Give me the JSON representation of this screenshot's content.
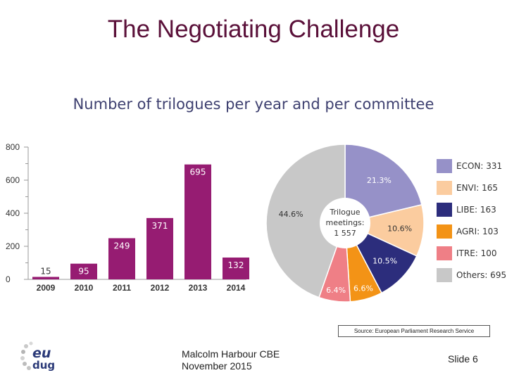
{
  "slide": {
    "title": "The Negotiating Challenge",
    "source": "Source: European Parliament Research Service",
    "presenter_name": "Malcolm Harbour CBE",
    "presenter_date": " November 2015",
    "slide_number": "Slide 6",
    "logo_text_top": "eu",
    "logo_text_bottom": "dug"
  },
  "chart_data": [
    {
      "type": "bar",
      "title": "Number of trilogues per year and per committee",
      "categories": [
        "2009",
        "2010",
        "2011",
        "2012",
        "2013",
        "2014"
      ],
      "values": [
        15,
        95,
        249,
        371,
        695,
        132
      ],
      "data_labels": [
        "15",
        "95",
        "249",
        "371",
        "695",
        "132"
      ],
      "ylim": [
        0,
        800
      ],
      "yticks": [
        0,
        200,
        400,
        600,
        800
      ],
      "bar_color": "#961c72",
      "grid": false
    },
    {
      "type": "pie",
      "center_label_lines": [
        "Trilogue",
        "meetings:",
        "1 557"
      ],
      "slices": [
        {
          "label": "ECON: 331",
          "value": 331,
          "percent_label": "21.3%",
          "color": "#9691c8"
        },
        {
          "label": "ENVI: 165",
          "value": 165,
          "percent_label": "10.6%",
          "color": "#fbcc9f"
        },
        {
          "label": "LIBE: 163",
          "value": 163,
          "percent_label": "10.5%",
          "color": "#2c2d7c"
        },
        {
          "label": "AGRI: 103",
          "value": 103,
          "percent_label": "6.6%",
          "color": "#f39316"
        },
        {
          "label": "ITRE: 100",
          "value": 100,
          "percent_label": "6.4%",
          "color": "#ef7f86"
        },
        {
          "label": "Others: 695",
          "value": 695,
          "percent_label": "44.6%",
          "color": "#c8c8c8"
        }
      ],
      "legend_position": "right"
    }
  ]
}
